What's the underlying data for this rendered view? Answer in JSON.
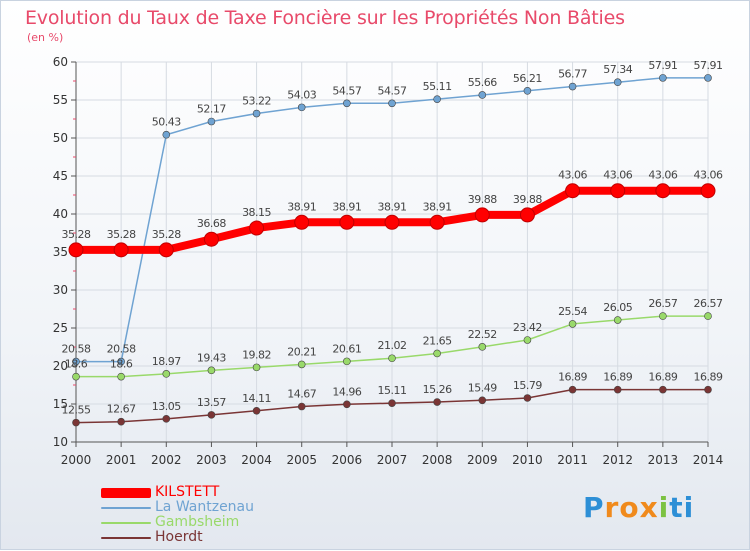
{
  "chart_data": {
    "type": "line",
    "title": "Evolution du Taux de Taxe Foncière sur les Propriétés Non Bâties",
    "unit_label": "(en %)",
    "categories": [
      "2000",
      "2001",
      "2002",
      "2003",
      "2004",
      "2005",
      "2006",
      "2007",
      "2008",
      "2009",
      "2010",
      "2011",
      "2012",
      "2013",
      "2014"
    ],
    "ylim": [
      10,
      60
    ],
    "yticks": [
      10,
      15,
      20,
      25,
      30,
      35,
      40,
      45,
      50,
      55,
      60
    ],
    "grid": true,
    "series": [
      {
        "name": "KILSTETT",
        "color": "#ff0000",
        "labels": [
          "35.28",
          "35.28",
          "35.28",
          "36.68",
          "38.15",
          "38.91",
          "38.91",
          "38.91",
          "38.91",
          "39.88",
          "39.88",
          "43.06",
          "43.06",
          "43.06",
          "43.06"
        ],
        "values": [
          35.28,
          35.28,
          35.28,
          36.68,
          38.15,
          38.91,
          38.91,
          38.91,
          38.91,
          39.88,
          39.88,
          43.06,
          43.06,
          43.06,
          43.06
        ]
      },
      {
        "name": "La Wantzenau",
        "color": "#6fa3d2",
        "labels": [
          "20.58",
          "20.58",
          "50.43",
          "52.17",
          "53.22",
          "54.03",
          "54.57",
          "54.57",
          "55.11",
          "55.66",
          "56.21",
          "56.77",
          "57.34",
          "57.91",
          "57.91"
        ],
        "values": [
          20.58,
          20.58,
          50.43,
          52.17,
          53.22,
          54.03,
          54.57,
          54.57,
          55.11,
          55.66,
          56.21,
          56.77,
          57.34,
          57.91,
          57.91
        ]
      },
      {
        "name": "Gambsheim",
        "color": "#99d96a",
        "labels": [
          "18.6",
          "18.6",
          "18.97",
          "19.43",
          "19.82",
          "20.21",
          "20.61",
          "21.02",
          "21.65",
          "22.52",
          "23.42",
          "25.54",
          "26.05",
          "26.57",
          "26.57"
        ],
        "values": [
          18.6,
          18.6,
          18.97,
          19.43,
          19.82,
          20.21,
          20.61,
          21.02,
          21.65,
          22.52,
          23.42,
          25.54,
          26.05,
          26.57,
          26.57
        ]
      },
      {
        "name": "Hoerdt",
        "color": "#7a3535",
        "labels": [
          "12.55",
          "12.67",
          "13.05",
          "13.57",
          "14.11",
          "14.67",
          "14.96",
          "15.11",
          "15.26",
          "15.49",
          "15.79",
          "16.89",
          "16.89",
          "16.89",
          "16.89"
        ],
        "values": [
          12.55,
          12.67,
          13.05,
          13.57,
          14.11,
          14.67,
          14.96,
          15.11,
          15.26,
          15.49,
          15.79,
          16.89,
          16.89,
          16.89,
          16.89
        ]
      }
    ]
  },
  "logo": {
    "letters": [
      "P",
      "r",
      "o",
      "x",
      "i",
      "t",
      "i"
    ],
    "colors": [
      "#2d8fd6",
      "#f08a1c",
      "#f08a1c",
      "#f08a1c",
      "#7cc242",
      "#2d8fd6",
      "#2d8fd6"
    ]
  }
}
